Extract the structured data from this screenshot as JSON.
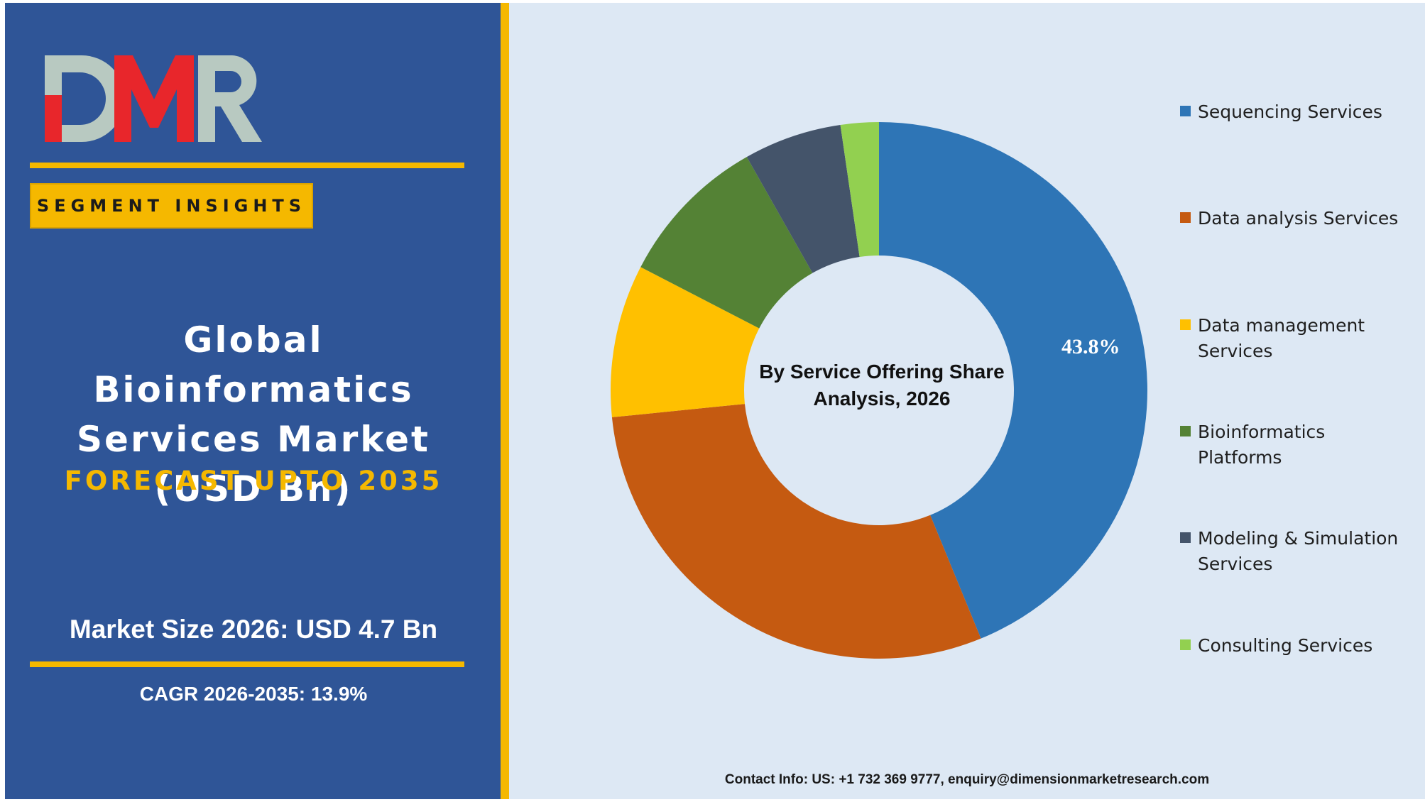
{
  "brand": {
    "logo_text": "DMR",
    "colors": {
      "red": "#e8262b",
      "gray": "#b8c9c1",
      "navy": "#2f5597",
      "gold": "#f5b800"
    }
  },
  "left_panel": {
    "segment_label": "SEGMENT INSIGHTS",
    "title": "Global Bioinformatics Services Market (USD Bn)",
    "forecast": "FORECAST UPTO 2035",
    "market_size": "Market Size 2026: USD 4.7 Bn",
    "cagr": "CAGR 2026-2035: 13.9%"
  },
  "chart_data": {
    "type": "pie",
    "donut": true,
    "title": "By Service Offering Share Analysis, 2026",
    "legend_position": "right",
    "categories": [
      "Sequencing Services",
      "Data analysis Services",
      "Data management Services",
      "Bioinformatics Platforms",
      "Modeling & Simulation Services",
      "Consulting Services"
    ],
    "values": [
      43.8,
      29.6,
      9.2,
      9.2,
      5.9,
      2.3
    ],
    "colors": [
      "#2e75b6",
      "#c55a11",
      "#ffc000",
      "#548235",
      "#44546a",
      "#92d050"
    ],
    "data_labels": [
      "43.8%",
      "",
      "",
      "",
      "",
      ""
    ]
  },
  "footer": {
    "contact": "Contact Info: US: +1 732 369 9777, enquiry@dimensionmarketresearch.com"
  }
}
